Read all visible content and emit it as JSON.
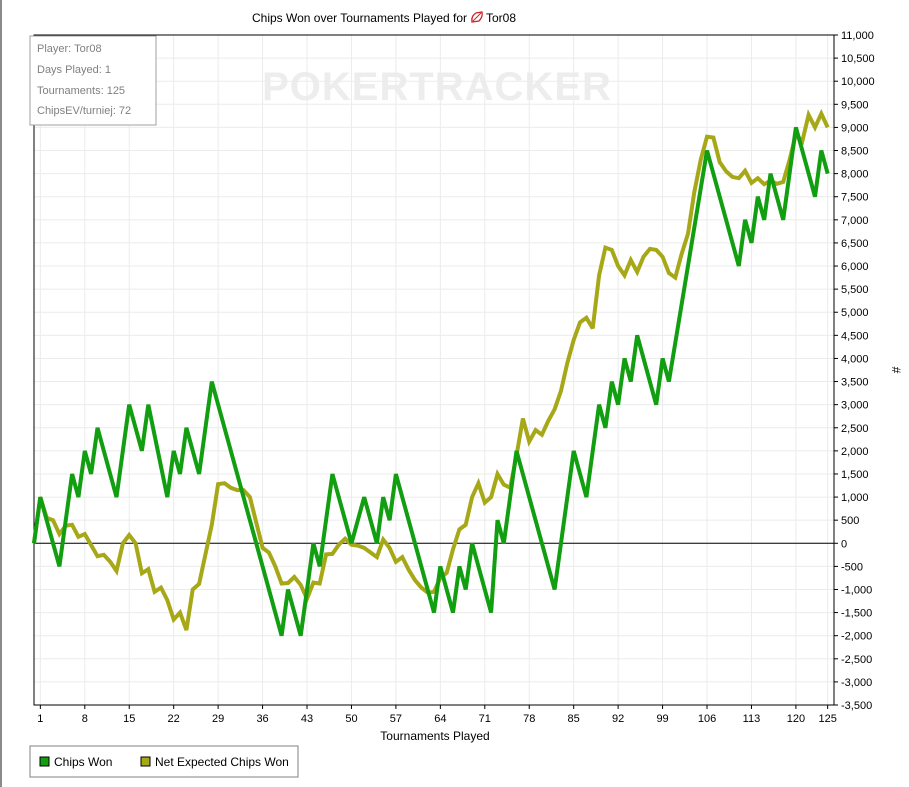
{
  "chart_data": {
    "type": "line",
    "title_prefix": "Chips Won over Tournaments Played for",
    "player": "Tor08",
    "xlabel": "Tournaments Played",
    "ylabel": "#",
    "xlim": [
      0,
      126
    ],
    "ylim": [
      -3500,
      11000
    ],
    "x_ticks": [
      1,
      8,
      15,
      22,
      29,
      36,
      43,
      50,
      57,
      64,
      71,
      78,
      85,
      92,
      99,
      106,
      113,
      120,
      125
    ],
    "y_ticks": [
      -3500,
      -3000,
      -2500,
      -2000,
      -1500,
      -1000,
      -500,
      0,
      500,
      1000,
      1500,
      2000,
      2500,
      3000,
      3500,
      4000,
      4500,
      5000,
      5500,
      6000,
      6500,
      7000,
      7500,
      8000,
      8500,
      9000,
      9500,
      10000,
      10500,
      11000
    ],
    "grid": true,
    "info_box": {
      "lines": [
        "Player: Tor08",
        "Days Played: 1",
        "Tournaments: 125",
        "ChipsEV/turniej: 72"
      ]
    },
    "watermark": "POKERTRACKER",
    "legend_position": "bottom-left",
    "series": [
      {
        "name": "Chips Won",
        "color": "#119e11",
        "points": [
          [
            0,
            0
          ],
          [
            1,
            1000
          ],
          [
            4,
            -500
          ],
          [
            6,
            1500
          ],
          [
            7,
            1000
          ],
          [
            8,
            2000
          ],
          [
            9,
            1500
          ],
          [
            10,
            2500
          ],
          [
            13,
            1000
          ],
          [
            15,
            3000
          ],
          [
            17,
            2000
          ],
          [
            18,
            3000
          ],
          [
            21,
            1000
          ],
          [
            22,
            2000
          ],
          [
            23,
            1500
          ],
          [
            24,
            2500
          ],
          [
            26,
            1500
          ],
          [
            28,
            3500
          ],
          [
            39,
            -2000
          ],
          [
            40,
            -1000
          ],
          [
            42,
            -2000
          ],
          [
            44,
            0
          ],
          [
            45,
            -500
          ],
          [
            47,
            1500
          ],
          [
            50,
            0
          ],
          [
            52,
            1000
          ],
          [
            54,
            0
          ],
          [
            55,
            1000
          ],
          [
            56,
            500
          ],
          [
            57,
            1500
          ],
          [
            63,
            -1500
          ],
          [
            64,
            -500
          ],
          [
            66,
            -1500
          ],
          [
            67,
            -500
          ],
          [
            68,
            -1000
          ],
          [
            69,
            0
          ],
          [
            72,
            -1500
          ],
          [
            73,
            500
          ],
          [
            74,
            0
          ],
          [
            76,
            2000
          ],
          [
            82,
            -1000
          ],
          [
            85,
            2000
          ],
          [
            87,
            1000
          ],
          [
            89,
            3000
          ],
          [
            90,
            2500
          ],
          [
            91,
            3500
          ],
          [
            92,
            3000
          ],
          [
            93,
            4000
          ],
          [
            94,
            3500
          ],
          [
            95,
            4500
          ],
          [
            98,
            3000
          ],
          [
            99,
            4000
          ],
          [
            100,
            3500
          ],
          [
            106,
            8500
          ],
          [
            111,
            6000
          ],
          [
            112,
            7000
          ],
          [
            113,
            6500
          ],
          [
            114,
            7500
          ],
          [
            115,
            7000
          ],
          [
            116,
            8000
          ],
          [
            118,
            7000
          ],
          [
            120,
            9000
          ],
          [
            121,
            8500
          ],
          [
            123,
            7500
          ],
          [
            124,
            8500
          ],
          [
            125,
            8000
          ]
        ]
      },
      {
        "name": "Net Expected Chips Won",
        "color": "#a6a817",
        "points": [
          [
            0,
            0
          ],
          [
            1,
            1000
          ],
          [
            2,
            550
          ],
          [
            3,
            500
          ],
          [
            4,
            200
          ],
          [
            5,
            380
          ],
          [
            6,
            400
          ],
          [
            7,
            140
          ],
          [
            8,
            200
          ],
          [
            10,
            -280
          ],
          [
            11,
            -250
          ],
          [
            12,
            -400
          ],
          [
            13,
            -600
          ],
          [
            14,
            0
          ],
          [
            15,
            180
          ],
          [
            16,
            0
          ],
          [
            17,
            -650
          ],
          [
            18,
            -560
          ],
          [
            19,
            -1050
          ],
          [
            20,
            -960
          ],
          [
            21,
            -1230
          ],
          [
            22,
            -1650
          ],
          [
            23,
            -1500
          ],
          [
            24,
            -1880
          ],
          [
            25,
            -1000
          ],
          [
            26,
            -880
          ],
          [
            28,
            400
          ],
          [
            29,
            1280
          ],
          [
            30,
            1300
          ],
          [
            31,
            1200
          ],
          [
            32,
            1150
          ],
          [
            33,
            1150
          ],
          [
            34,
            1000
          ],
          [
            36,
            -100
          ],
          [
            37,
            -200
          ],
          [
            38,
            -500
          ],
          [
            39,
            -870
          ],
          [
            40,
            -860
          ],
          [
            41,
            -730
          ],
          [
            42,
            -900
          ],
          [
            43,
            -1200
          ],
          [
            44,
            -850
          ],
          [
            45,
            -870
          ],
          [
            46,
            -240
          ],
          [
            47,
            -230
          ],
          [
            48,
            -30
          ],
          [
            49,
            100
          ],
          [
            50,
            -30
          ],
          [
            51,
            -50
          ],
          [
            52,
            -100
          ],
          [
            53,
            -200
          ],
          [
            54,
            -300
          ],
          [
            55,
            80
          ],
          [
            56,
            -100
          ],
          [
            57,
            -400
          ],
          [
            58,
            -300
          ],
          [
            59,
            -570
          ],
          [
            60,
            -800
          ],
          [
            61,
            -960
          ],
          [
            62,
            -1070
          ],
          [
            63,
            -1050
          ],
          [
            64,
            -750
          ],
          [
            65,
            -640
          ],
          [
            66,
            -130
          ],
          [
            67,
            300
          ],
          [
            68,
            400
          ],
          [
            69,
            1000
          ],
          [
            70,
            1300
          ],
          [
            71,
            880
          ],
          [
            72,
            1000
          ],
          [
            73,
            1500
          ],
          [
            74,
            1270
          ],
          [
            75,
            1200
          ],
          [
            76,
            1900
          ],
          [
            77,
            2700
          ],
          [
            78,
            2200
          ],
          [
            79,
            2450
          ],
          [
            80,
            2350
          ],
          [
            81,
            2650
          ],
          [
            82,
            2900
          ],
          [
            83,
            3300
          ],
          [
            84,
            3900
          ],
          [
            85,
            4400
          ],
          [
            86,
            4780
          ],
          [
            87,
            4880
          ],
          [
            88,
            4650
          ],
          [
            89,
            5800
          ],
          [
            90,
            6400
          ],
          [
            91,
            6350
          ],
          [
            92,
            6000
          ],
          [
            93,
            5800
          ],
          [
            94,
            6130
          ],
          [
            95,
            5870
          ],
          [
            96,
            6200
          ],
          [
            97,
            6370
          ],
          [
            98,
            6350
          ],
          [
            99,
            6200
          ],
          [
            100,
            5850
          ],
          [
            101,
            5750
          ],
          [
            102,
            6260
          ],
          [
            103,
            6700
          ],
          [
            104,
            7600
          ],
          [
            105,
            8300
          ],
          [
            106,
            8800
          ],
          [
            107,
            8780
          ],
          [
            108,
            8250
          ],
          [
            109,
            8050
          ],
          [
            110,
            7930
          ],
          [
            111,
            7900
          ],
          [
            112,
            8060
          ],
          [
            113,
            7800
          ],
          [
            114,
            7900
          ],
          [
            115,
            7770
          ],
          [
            116,
            7850
          ],
          [
            117,
            7780
          ],
          [
            118,
            7820
          ],
          [
            119,
            8300
          ],
          [
            120,
            8850
          ],
          [
            121,
            8700
          ],
          [
            122,
            9270
          ],
          [
            123,
            9000
          ],
          [
            124,
            9300
          ],
          [
            125,
            9000
          ]
        ]
      }
    ]
  }
}
